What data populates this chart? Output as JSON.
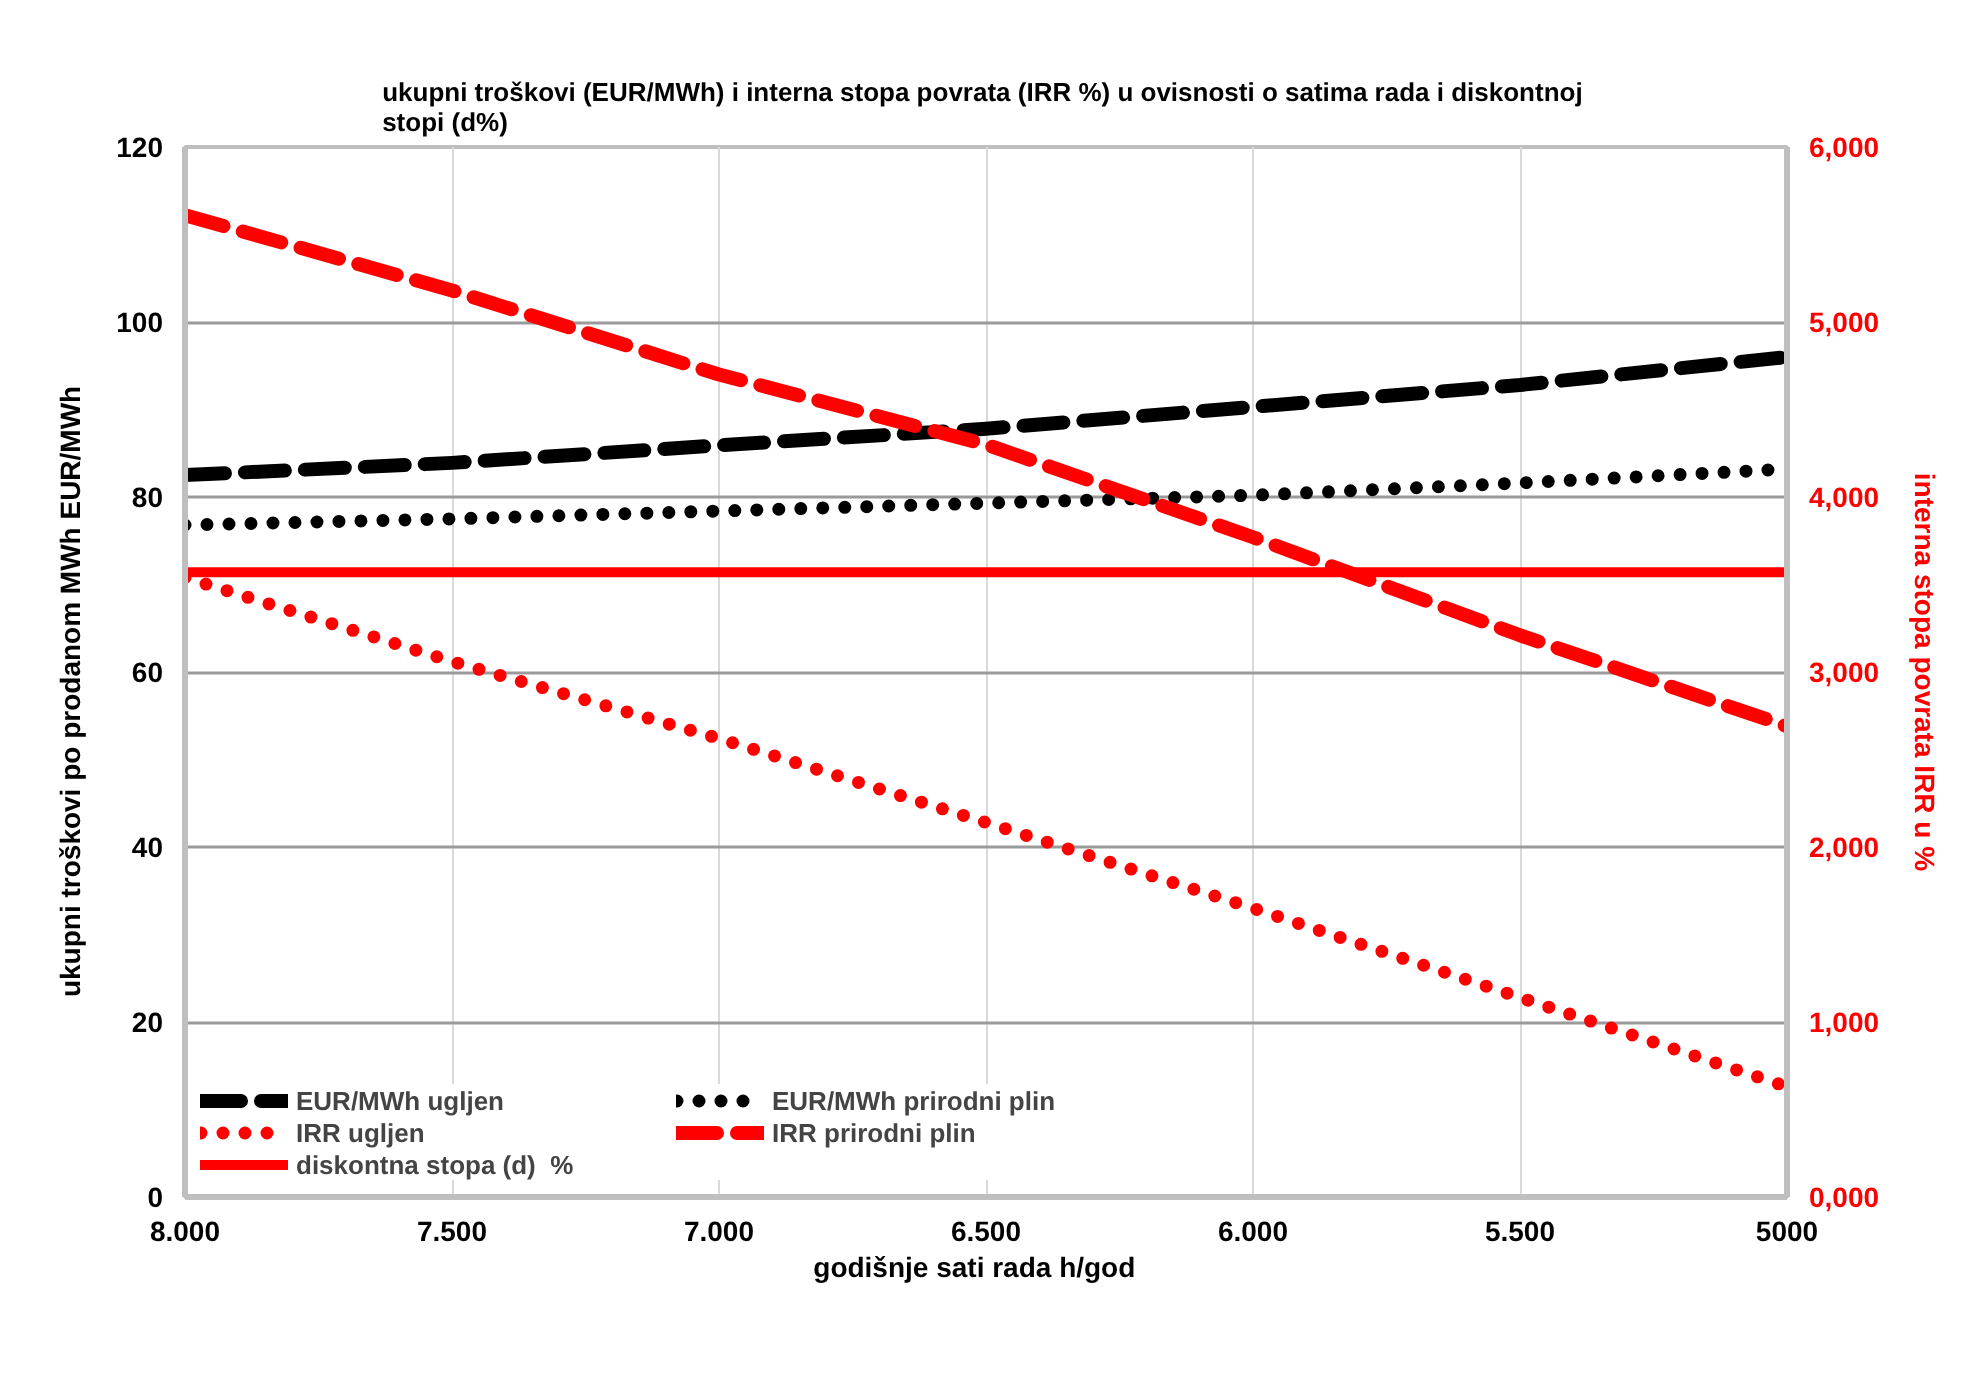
{
  "chart_data": {
    "type": "line",
    "title": "ukupni troškovi (EUR/MWh) i interna stopa povrata (IRR %)  u ovisnosti o satima rada i diskontnoj stopi (d%)",
    "xlabel": "godišnje sati rada    h/god",
    "ylabel": "ukupni troškovi po prodanom MWh      EUR/MWh",
    "y2label": "interna stopa povrata IRR u %",
    "x": [
      8000,
      7500,
      7000,
      6500,
      6000,
      5500,
      5000
    ],
    "xlim": [
      8000,
      5000
    ],
    "xticks": [
      {
        "value": 8000,
        "label": "8.000"
      },
      {
        "value": 7500,
        "label": "7.500"
      },
      {
        "value": 7000,
        "label": "7.000"
      },
      {
        "value": 6500,
        "label": "6.500"
      },
      {
        "value": 6000,
        "label": "6.000"
      },
      {
        "value": 5500,
        "label": "5.500"
      },
      {
        "value": 5000,
        "label": "5000"
      }
    ],
    "ylim": [
      0,
      120
    ],
    "yticks": [
      0,
      20,
      40,
      60,
      80,
      100,
      120
    ],
    "y2lim": [
      0,
      6
    ],
    "y2ticks": [
      {
        "value": 0,
        "label": "0,000"
      },
      {
        "value": 1,
        "label": "1,000"
      },
      {
        "value": 2,
        "label": "2,000"
      },
      {
        "value": 3,
        "label": "3,000"
      },
      {
        "value": 4,
        "label": "4,000"
      },
      {
        "value": 5,
        "label": "5,000"
      },
      {
        "value": 6,
        "label": "6,000"
      }
    ],
    "grid": true,
    "legend": "bottom left",
    "series": [
      {
        "name": "EUR/MWh ugljen",
        "color": "#000000",
        "line_style": "dashed",
        "values": [
          82.5,
          83.9,
          85.9,
          87.8,
          90.3,
          92.8,
          96.0
        ]
      },
      {
        "name": "EUR/MWh prirodni plin",
        "color": "#000000",
        "line_style": "dotted",
        "values": [
          76.8,
          77.5,
          78.4,
          79.3,
          80.2,
          81.6,
          83.2
        ]
      },
      {
        "name": "IRR ugljen",
        "color": "#ff0000",
        "line_style": "dotted",
        "axis": "y2",
        "values": [
          3.54,
          3.06,
          2.62,
          2.14,
          1.65,
          1.14,
          0.63
        ]
      },
      {
        "name": "IRR prirodni plin",
        "color": "#ff0000",
        "line_style": "dashed",
        "axis": "y2",
        "values": [
          5.61,
          5.18,
          4.7,
          4.3,
          3.77,
          3.21,
          2.69
        ]
      },
      {
        "name": "diskontna stopa (d)  %",
        "color": "#ff0000",
        "line_style": "solid",
        "axis": "y2",
        "values": [
          3.57,
          3.57,
          3.57,
          3.57,
          3.57,
          3.57,
          3.57
        ]
      }
    ]
  }
}
